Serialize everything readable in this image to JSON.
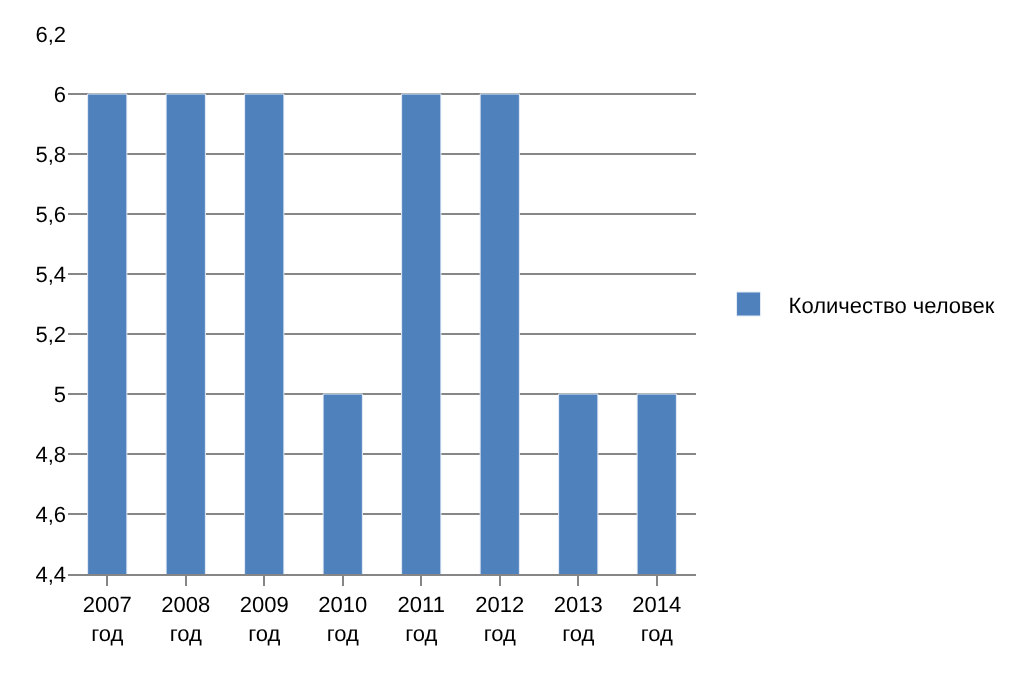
{
  "chart_data": {
    "type": "bar",
    "categories": [
      "2007\nгод",
      "2008\nгод",
      "2009\nгод",
      "2010\nгод",
      "2011\nгод",
      "2012\nгод",
      "2013\nгод",
      "2014\nгод"
    ],
    "series": [
      {
        "name": "Количество человек",
        "color": "#4f81bd",
        "values": [
          6,
          6,
          6,
          5,
          6,
          6,
          5,
          5
        ]
      }
    ],
    "ylim": [
      4.4,
      6.2
    ],
    "yticks": [
      {
        "value": 4.4,
        "label": "4,4"
      },
      {
        "value": 4.6,
        "label": "4,6"
      },
      {
        "value": 4.8,
        "label": "4,8"
      },
      5,
      {
        "value": 5.2,
        "label": "5,2"
      },
      {
        "value": 5.4,
        "label": "5,4"
      },
      {
        "value": 5.6,
        "label": "5,6"
      },
      {
        "value": 5.8,
        "label": "5,8"
      },
      6,
      {
        "value": 6.2,
        "label": "6,2"
      }
    ],
    "grid": "y",
    "legend": "right"
  }
}
